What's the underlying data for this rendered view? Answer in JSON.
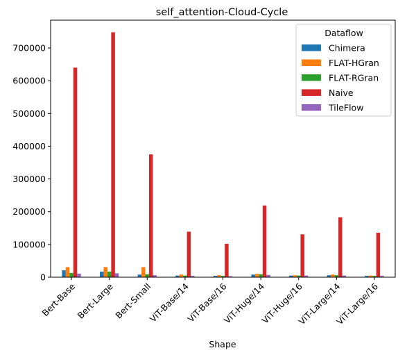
{
  "chart_data": {
    "type": "bar",
    "title": "self_attention-Cloud-Cycle",
    "xlabel": "Shape",
    "ylabel": "",
    "categories": [
      "Bert-Base",
      "Bert-Large",
      "Bert-Small",
      "ViT-Base/14",
      "ViT-Base/16",
      "ViT-Huge/14",
      "ViT-Huge/16",
      "ViT-Large/14",
      "ViT-Large/16"
    ],
    "ylim": [
      0,
      785000
    ],
    "yticks": [
      0,
      100000,
      200000,
      300000,
      400000,
      500000,
      600000,
      700000
    ],
    "ytick_labels": [
      "0",
      "100000",
      "200000",
      "300000",
      "400000",
      "500000",
      "600000",
      "700000"
    ],
    "legend_title": "Dataflow",
    "legend_position": "top-right",
    "series": [
      {
        "name": "Chimera",
        "color": "#1f77b4",
        "values": [
          21000,
          17000,
          8000,
          5000,
          4000,
          8000,
          5000,
          6000,
          4000
        ]
      },
      {
        "name": "FLAT-HGran",
        "color": "#ff7f0e",
        "values": [
          31000,
          31000,
          31000,
          8000,
          6000,
          10000,
          6000,
          8000,
          5000
        ]
      },
      {
        "name": "FLAT-RGran",
        "color": "#2ca02c",
        "values": [
          13000,
          17000,
          9000,
          5000,
          4000,
          9000,
          5000,
          6000,
          4000
        ]
      },
      {
        "name": "Naive",
        "color": "#d62728",
        "values": [
          640000,
          748000,
          375000,
          139000,
          102000,
          219000,
          131000,
          183000,
          136000
        ]
      },
      {
        "name": "TileFlow",
        "color": "#9467bd",
        "values": [
          11000,
          12000,
          6000,
          4000,
          3000,
          7000,
          5000,
          5000,
          4000
        ]
      }
    ]
  }
}
